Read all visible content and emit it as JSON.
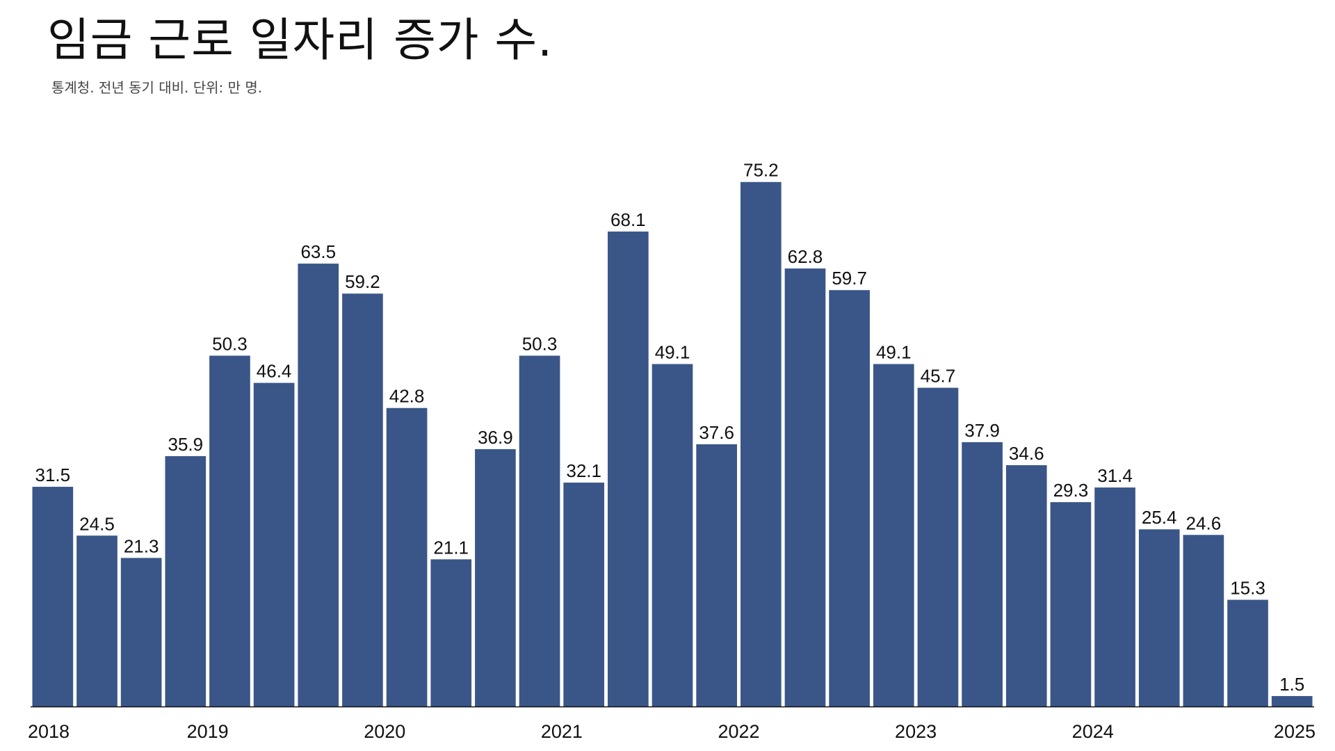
{
  "colors": {
    "bar": "#3a5688",
    "axis": "#111111",
    "text": "#111111",
    "background": "#ffffff"
  },
  "chart_data": {
    "type": "bar",
    "title": "임금 근로 일자리 증가 수.",
    "subtitle": "통계청. 전년 동기 대비. 단위: 만 명.",
    "xlabel": "",
    "ylabel": "",
    "ylim": [
      0,
      80
    ],
    "grid": false,
    "legend": "none",
    "x_ticks": [
      "2018",
      "2019",
      "2020",
      "2021",
      "2022",
      "2023",
      "2024",
      "2025"
    ],
    "categories": [
      "2018 Q1",
      "2018 Q2",
      "2018 Q3",
      "2018 Q4",
      "2019 Q1",
      "2019 Q2",
      "2019 Q3",
      "2019 Q4",
      "2020 Q1",
      "2020 Q2",
      "2020 Q3",
      "2020 Q4",
      "2021 Q1",
      "2021 Q2",
      "2021 Q3",
      "2021 Q4",
      "2022 Q1",
      "2022 Q2",
      "2022 Q3",
      "2022 Q4",
      "2023 Q1",
      "2023 Q2",
      "2023 Q3",
      "2023 Q4",
      "2024 Q1",
      "2024 Q2",
      "2024 Q3",
      "2024 Q4",
      "2025 Q1"
    ],
    "values": [
      31.5,
      24.5,
      21.3,
      35.9,
      50.3,
      46.4,
      63.5,
      59.2,
      42.8,
      21.1,
      36.9,
      50.3,
      32.1,
      68.1,
      49.1,
      37.6,
      75.2,
      62.8,
      59.7,
      49.1,
      45.7,
      37.9,
      34.6,
      29.3,
      31.4,
      25.4,
      24.6,
      15.3,
      1.5
    ],
    "data_labels": [
      "31.5",
      "24.5",
      "21.3",
      "35.9",
      "50.3",
      "46.4",
      "63.5",
      "59.2",
      "42.8",
      "21.1",
      "36.9",
      "50.3",
      "32.1",
      "68.1",
      "49.1",
      "37.6",
      "75.2",
      "62.8",
      "59.7",
      "49.1",
      "45.7",
      "37.9",
      "34.6",
      "29.3",
      "31.4",
      "25.4",
      "24.6",
      "15.3",
      "1.5"
    ]
  }
}
